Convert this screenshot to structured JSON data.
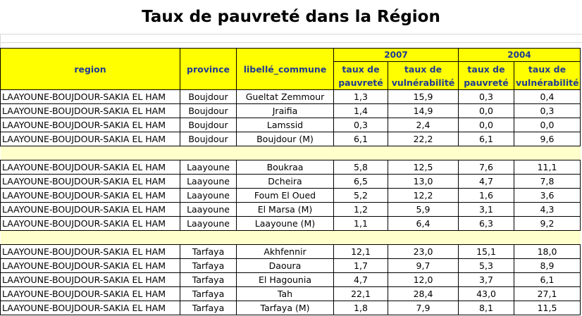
{
  "title": "Taux de pauvreté dans la Région",
  "headers": {
    "region": "region",
    "province": "province",
    "commune": "libellé_commune",
    "year_2007": "2007",
    "year_2004": "2004",
    "taux_pauvrete": "taux de pauvreté",
    "taux_vulnerabilite": "taux de vulnérabilité"
  },
  "groups": [
    {
      "rows": [
        {
          "region": "LAAYOUNE-BOUJDOUR-SAKIA EL HAM",
          "province": "Boujdour",
          "commune": "Gueltat Zemmour",
          "p2007": "1,3",
          "v2007": "15,9",
          "p2004": "0,3",
          "v2004": "0,4"
        },
        {
          "region": "LAAYOUNE-BOUJDOUR-SAKIA EL HAM",
          "province": "Boujdour",
          "commune": "Jraifia",
          "p2007": "1,4",
          "v2007": "14,9",
          "p2004": "0,0",
          "v2004": "0,3"
        },
        {
          "region": "LAAYOUNE-BOUJDOUR-SAKIA EL HAM",
          "province": "Boujdour",
          "commune": "Lamssid",
          "p2007": "0,3",
          "v2007": "2,4",
          "p2004": "0,0",
          "v2004": "0,0"
        },
        {
          "region": "LAAYOUNE-BOUJDOUR-SAKIA EL HAM",
          "province": "Boujdour",
          "commune": "Boujdour (M)",
          "p2007": "6,1",
          "v2007": "22,2",
          "p2004": "6,1",
          "v2004": "9,6"
        }
      ]
    },
    {
      "rows": [
        {
          "region": "LAAYOUNE-BOUJDOUR-SAKIA EL HAM",
          "province": "Laayoune",
          "commune": "Boukraa",
          "p2007": "5,8",
          "v2007": "12,5",
          "p2004": "7,6",
          "v2004": "11,1"
        },
        {
          "region": "LAAYOUNE-BOUJDOUR-SAKIA EL HAM",
          "province": "Laayoune",
          "commune": "Dcheira",
          "p2007": "6,5",
          "v2007": "13,0",
          "p2004": "4,7",
          "v2004": "7,8"
        },
        {
          "region": "LAAYOUNE-BOUJDOUR-SAKIA EL HAM",
          "province": "Laayoune",
          "commune": "Foum El Oued",
          "p2007": "5,2",
          "v2007": "12,2",
          "p2004": "1,6",
          "v2004": "3,6"
        },
        {
          "region": "LAAYOUNE-BOUJDOUR-SAKIA EL HAM",
          "province": "Laayoune",
          "commune": "El Marsa (M)",
          "p2007": "1,2",
          "v2007": "5,9",
          "p2004": "3,1",
          "v2004": "4,3"
        },
        {
          "region": "LAAYOUNE-BOUJDOUR-SAKIA EL HAM",
          "province": "Laayoune",
          "commune": "Laayoune (M)",
          "p2007": "1,1",
          "v2007": "6,4",
          "p2004": "6,3",
          "v2004": "9,2"
        }
      ]
    },
    {
      "rows": [
        {
          "region": "LAAYOUNE-BOUJDOUR-SAKIA EL HAM",
          "province": "Tarfaya",
          "commune": "Akhfennir",
          "p2007": "12,1",
          "v2007": "23,0",
          "p2004": "15,1",
          "v2004": "18,0"
        },
        {
          "region": "LAAYOUNE-BOUJDOUR-SAKIA EL HAM",
          "province": "Tarfaya",
          "commune": "Daoura",
          "p2007": "1,7",
          "v2007": "9,7",
          "p2004": "5,3",
          "v2004": "8,9"
        },
        {
          "region": "LAAYOUNE-BOUJDOUR-SAKIA EL HAM",
          "province": "Tarfaya",
          "commune": "El Hagounia",
          "p2007": "4,7",
          "v2007": "12,0",
          "p2004": "3,7",
          "v2004": "6,1"
        },
        {
          "region": "LAAYOUNE-BOUJDOUR-SAKIA EL HAM",
          "province": "Tarfaya",
          "commune": "Tah",
          "p2007": "22,1",
          "v2007": "28,4",
          "p2004": "43,0",
          "v2004": "27,1"
        },
        {
          "region": "LAAYOUNE-BOUJDOUR-SAKIA EL HAM",
          "province": "Tarfaya",
          "commune": "Tarfaya (M)",
          "p2007": "1,8",
          "v2007": "7,9",
          "p2004": "8,1",
          "v2004": "11,5"
        }
      ]
    }
  ]
}
